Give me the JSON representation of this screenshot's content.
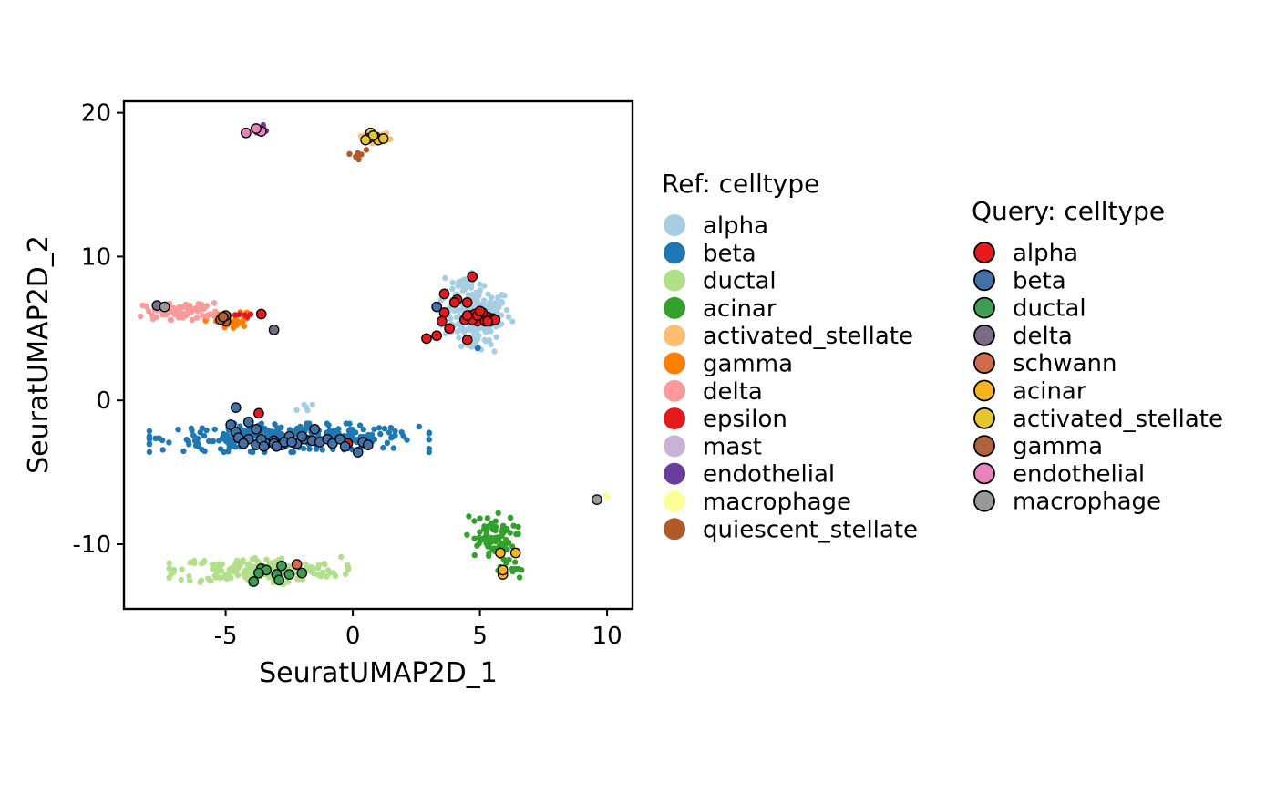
{
  "chart_data": {
    "type": "scatter",
    "xlabel": "SeuratUMAP2D_1",
    "ylabel": "SeuratUMAP2D_2",
    "xlim": [
      -9.0,
      11.0
    ],
    "ylim": [
      -14.5,
      20.8
    ],
    "x_ticks": [
      -5,
      0,
      5,
      10
    ],
    "x_tick_labels": [
      "-5",
      "0",
      "5",
      "10"
    ],
    "y_ticks": [
      -10,
      0,
      10,
      20
    ],
    "y_tick_labels": [
      "-10",
      "0",
      "10",
      "20"
    ],
    "grid": false,
    "legend_placement": "right",
    "ref_legend_title": "Ref: celltype",
    "query_legend_title": "Query: celltype",
    "ref_series": [
      {
        "name": "alpha",
        "color": "#A6CEE3",
        "clusters": [
          {
            "cx": 4.9,
            "cy": 6.0,
            "sx": 0.65,
            "sy": 0.9,
            "n": 170
          },
          {
            "cx": 4.4,
            "cy": 8.1,
            "sx": 0.35,
            "sy": 0.35,
            "n": 25
          },
          {
            "cx": 4.8,
            "cy": 4.0,
            "sx": 0.35,
            "sy": 0.3,
            "n": 20
          },
          {
            "cx": -1.9,
            "cy": -0.5,
            "sx": 0.15,
            "sy": 0.25,
            "n": 5
          }
        ]
      },
      {
        "name": "beta",
        "color": "#1F78B4",
        "clusters": [
          {
            "cx": -2.5,
            "cy": -2.6,
            "sx": 2.5,
            "sy": 0.45,
            "n": 320
          },
          {
            "cx": 4.9,
            "cy": 3.6,
            "sx": 0.05,
            "sy": 0.05,
            "n": 2
          }
        ]
      },
      {
        "name": "ductal",
        "color": "#B2DF8A",
        "clusters": [
          {
            "cx": -3.7,
            "cy": -11.8,
            "sx": 1.6,
            "sy": 0.45,
            "n": 190
          }
        ]
      },
      {
        "name": "acinar",
        "color": "#33A02C",
        "clusters": [
          {
            "cx": 5.4,
            "cy": -9.6,
            "sx": 0.5,
            "sy": 0.8,
            "n": 75
          },
          {
            "cx": 6.2,
            "cy": -11.8,
            "sx": 0.25,
            "sy": 0.4,
            "n": 12
          }
        ]
      },
      {
        "name": "activated_stellate",
        "color": "#FDBF6F",
        "clusters": [
          {
            "cx": 0.9,
            "cy": 18.3,
            "sx": 0.3,
            "sy": 0.2,
            "n": 18
          }
        ]
      },
      {
        "name": "gamma",
        "color": "#FF7F00",
        "clusters": [
          {
            "cx": -4.8,
            "cy": 5.5,
            "sx": 0.45,
            "sy": 0.3,
            "n": 35
          }
        ]
      },
      {
        "name": "delta",
        "color": "#FB9A99",
        "clusters": [
          {
            "cx": -6.7,
            "cy": 6.2,
            "sx": 0.75,
            "sy": 0.28,
            "n": 85
          }
        ]
      },
      {
        "name": "epsilon",
        "color": "#E31A1C",
        "clusters": [
          {
            "cx": -4.3,
            "cy": 5.9,
            "sx": 0.3,
            "sy": 0.1,
            "n": 6
          }
        ]
      },
      {
        "name": "mast",
        "color": "#CAB2D6",
        "clusters": [
          {
            "cx": -2.2,
            "cy": -2.6,
            "sx": 0.05,
            "sy": 0.05,
            "n": 1
          }
        ]
      },
      {
        "name": "endothelial",
        "color": "#6A3D9A",
        "clusters": [
          {
            "cx": -3.8,
            "cy": 18.9,
            "sx": 0.18,
            "sy": 0.15,
            "n": 7
          }
        ]
      },
      {
        "name": "macrophage",
        "color": "#FFFF99",
        "clusters": [
          {
            "cx": 10.0,
            "cy": -6.7,
            "sx": 0.05,
            "sy": 0.05,
            "n": 3
          }
        ]
      },
      {
        "name": "quiescent_stellate",
        "color": "#B15928",
        "clusters": [
          {
            "cx": 0.2,
            "cy": 17.0,
            "sx": 0.15,
            "sy": 0.35,
            "n": 8
          }
        ]
      }
    ],
    "query_series": [
      {
        "name": "alpha",
        "color": "#E41A1C",
        "points": [
          [
            4.7,
            8.6
          ],
          [
            3.6,
            7.4
          ],
          [
            4.1,
            7.0
          ],
          [
            4.0,
            6.8
          ],
          [
            4.5,
            6.8
          ],
          [
            3.6,
            6.1
          ],
          [
            3.5,
            5.5
          ],
          [
            3.8,
            5.0
          ],
          [
            4.5,
            4.2
          ],
          [
            3.3,
            4.5
          ],
          [
            2.9,
            4.3
          ],
          [
            -3.6,
            6.0
          ],
          [
            -0.2,
            -3.0
          ],
          [
            -3.7,
            -0.9
          ],
          [
            5.0,
            5.7
          ],
          [
            5.3,
            5.8
          ],
          [
            4.6,
            5.9
          ],
          [
            5.5,
            5.7
          ],
          [
            4.9,
            5.5
          ],
          [
            5.1,
            6.1
          ],
          [
            4.4,
            5.6
          ],
          [
            5.4,
            5.5
          ],
          [
            4.8,
            6.0
          ],
          [
            5.2,
            5.5
          ],
          [
            4.7,
            5.6
          ],
          [
            5.6,
            5.6
          ],
          [
            4.9,
            5.9
          ],
          [
            5.0,
            6.2
          ],
          [
            5.3,
            5.5
          ],
          [
            4.5,
            5.9
          ]
        ]
      },
      {
        "name": "beta",
        "color": "#4470A8",
        "points": [
          [
            -4.6,
            -0.5
          ],
          [
            -4.8,
            -1.7
          ],
          [
            -4.1,
            -1.5
          ],
          [
            -3.8,
            -2.0
          ],
          [
            -4.6,
            -2.2
          ],
          [
            -4.5,
            -2.6
          ],
          [
            -4.1,
            -2.7
          ],
          [
            -4.3,
            -3.0
          ],
          [
            -3.8,
            -3.1
          ],
          [
            -3.4,
            -3.0
          ],
          [
            -3.1,
            -2.8
          ],
          [
            -2.8,
            -3.1
          ],
          [
            -2.5,
            -2.5
          ],
          [
            -2.2,
            -3.0
          ],
          [
            -1.9,
            -2.7
          ],
          [
            -1.6,
            -2.8
          ],
          [
            -1.3,
            -2.9
          ],
          [
            -1.0,
            -2.7
          ],
          [
            -0.8,
            -3.0
          ],
          [
            -0.5,
            -2.7
          ],
          [
            -0.3,
            -3.2
          ],
          [
            0.2,
            -3.6
          ],
          [
            0.4,
            -2.9
          ],
          [
            0.6,
            -3.1
          ],
          [
            -3.1,
            -3.0
          ],
          [
            -3.6,
            -2.7
          ],
          [
            -2.7,
            -2.9
          ],
          [
            -2.0,
            -2.5
          ],
          [
            -1.5,
            -2.0
          ],
          [
            3.3,
            6.5
          ],
          [
            -3.5,
            -3.2
          ],
          [
            -3.0,
            -3.2
          ],
          [
            -2.4,
            -2.9
          ]
        ]
      },
      {
        "name": "ductal",
        "color": "#3E9D52",
        "points": [
          [
            -3.6,
            -11.7
          ],
          [
            -3.4,
            -11.8
          ],
          [
            -3.7,
            -12.0
          ],
          [
            -2.8,
            -11.5
          ],
          [
            -3.0,
            -12.1
          ],
          [
            -2.9,
            -12.5
          ],
          [
            -3.9,
            -12.6
          ],
          [
            -2.5,
            -12.1
          ],
          [
            -2.0,
            -12.0
          ]
        ]
      },
      {
        "name": "delta",
        "color": "#7A6C87",
        "points": [
          [
            -3.1,
            4.9
          ],
          [
            -7.7,
            6.6
          ]
        ]
      },
      {
        "name": "schwann",
        "color": "#D16B4C",
        "points": [
          [
            -2.2,
            -11.4
          ]
        ]
      },
      {
        "name": "acinar",
        "color": "#F5B31D",
        "points": [
          [
            5.9,
            -12.1
          ],
          [
            5.8,
            -10.6
          ],
          [
            6.4,
            -10.6
          ],
          [
            5.9,
            -11.8
          ]
        ]
      },
      {
        "name": "activated_stellate",
        "color": "#E4C62F",
        "points": [
          [
            0.7,
            18.6
          ],
          [
            0.6,
            18.2
          ],
          [
            0.9,
            18.3
          ],
          [
            1.0,
            18.1
          ],
          [
            0.8,
            18.4
          ],
          [
            1.2,
            18.2
          ],
          [
            0.5,
            18.1
          ]
        ]
      },
      {
        "name": "gamma",
        "color": "#B0613D",
        "points": [
          [
            -5.0,
            5.5
          ],
          [
            -5.2,
            5.6
          ],
          [
            -5.0,
            5.9
          ],
          [
            -5.1,
            5.8
          ]
        ]
      },
      {
        "name": "endothelial",
        "color": "#E784BE",
        "points": [
          [
            -4.2,
            18.6
          ],
          [
            -3.6,
            18.7
          ],
          [
            -3.8,
            18.9
          ]
        ]
      },
      {
        "name": "macrophage",
        "color": "#999999",
        "points": [
          [
            9.6,
            -6.9
          ],
          [
            -7.4,
            6.5
          ]
        ]
      }
    ]
  }
}
